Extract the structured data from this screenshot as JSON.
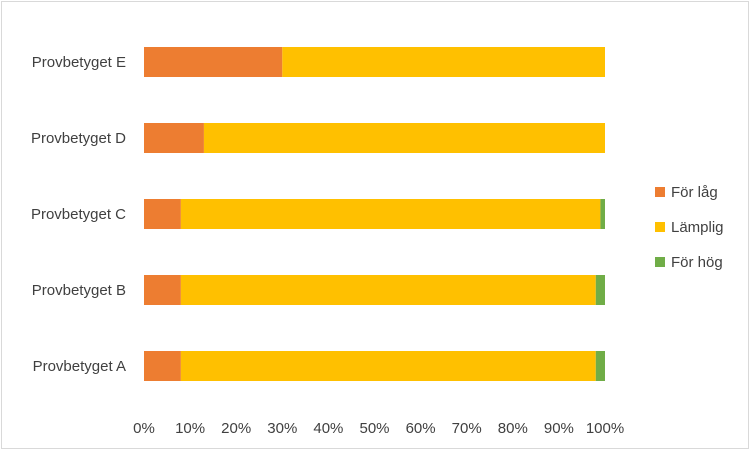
{
  "chart_data": {
    "type": "bar",
    "orientation": "horizontal",
    "stacked": "percent",
    "categories": [
      "Provbetyget E",
      "Provbetyget D",
      "Provbetyget C",
      "Provbetyget B",
      "Provbetyget A"
    ],
    "series": [
      {
        "name": "För låg",
        "color": "#ED7D31",
        "values": [
          30,
          13,
          8,
          8,
          8
        ]
      },
      {
        "name": "Lämplig",
        "color": "#FFC000",
        "values": [
          70,
          87,
          91,
          90,
          90
        ]
      },
      {
        "name": "För hög",
        "color": "#70AD47",
        "values": [
          0,
          0,
          1,
          2,
          2
        ]
      }
    ],
    "xlim": [
      0,
      100
    ],
    "xticks": [
      "0%",
      "10%",
      "20%",
      "30%",
      "40%",
      "50%",
      "60%",
      "70%",
      "80%",
      "90%",
      "100%"
    ],
    "grid": false,
    "legend_position": "right"
  }
}
